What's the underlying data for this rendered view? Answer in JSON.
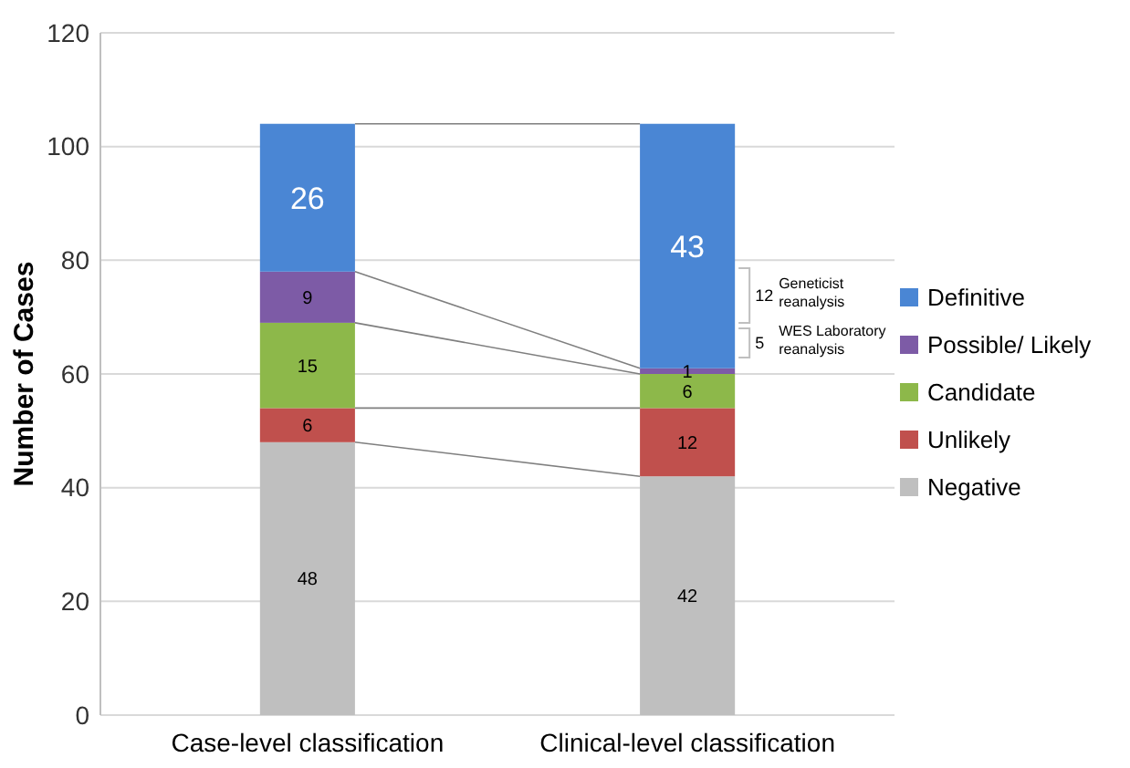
{
  "chart_data": {
    "type": "bar",
    "stacked": true,
    "ylabel": "Number of Cases",
    "categories": [
      "Case-level classification",
      "Clinical-level classification"
    ],
    "series": [
      {
        "name": "Negative",
        "color": "#bfbfbf",
        "values": [
          48,
          42
        ]
      },
      {
        "name": "Unlikely",
        "color": "#c0504d",
        "values": [
          6,
          12
        ]
      },
      {
        "name": "Candidate",
        "color": "#8db84a",
        "values": [
          15,
          6
        ]
      },
      {
        "name": "Possible/ Likely",
        "color": "#7d5ba6",
        "values": [
          9,
          1
        ]
      },
      {
        "name": "Definitive",
        "color": "#4a86d4",
        "values": [
          26,
          43
        ]
      }
    ],
    "ylim": [
      0,
      120
    ],
    "yticks": [
      0,
      20,
      40,
      60,
      80,
      100,
      120
    ],
    "grid": "y",
    "legend": "right",
    "data_labels": true,
    "annotations": [
      "12",
      "Geneticist reanalysis",
      "5",
      "WES Laboratory reanalysis"
    ]
  }
}
